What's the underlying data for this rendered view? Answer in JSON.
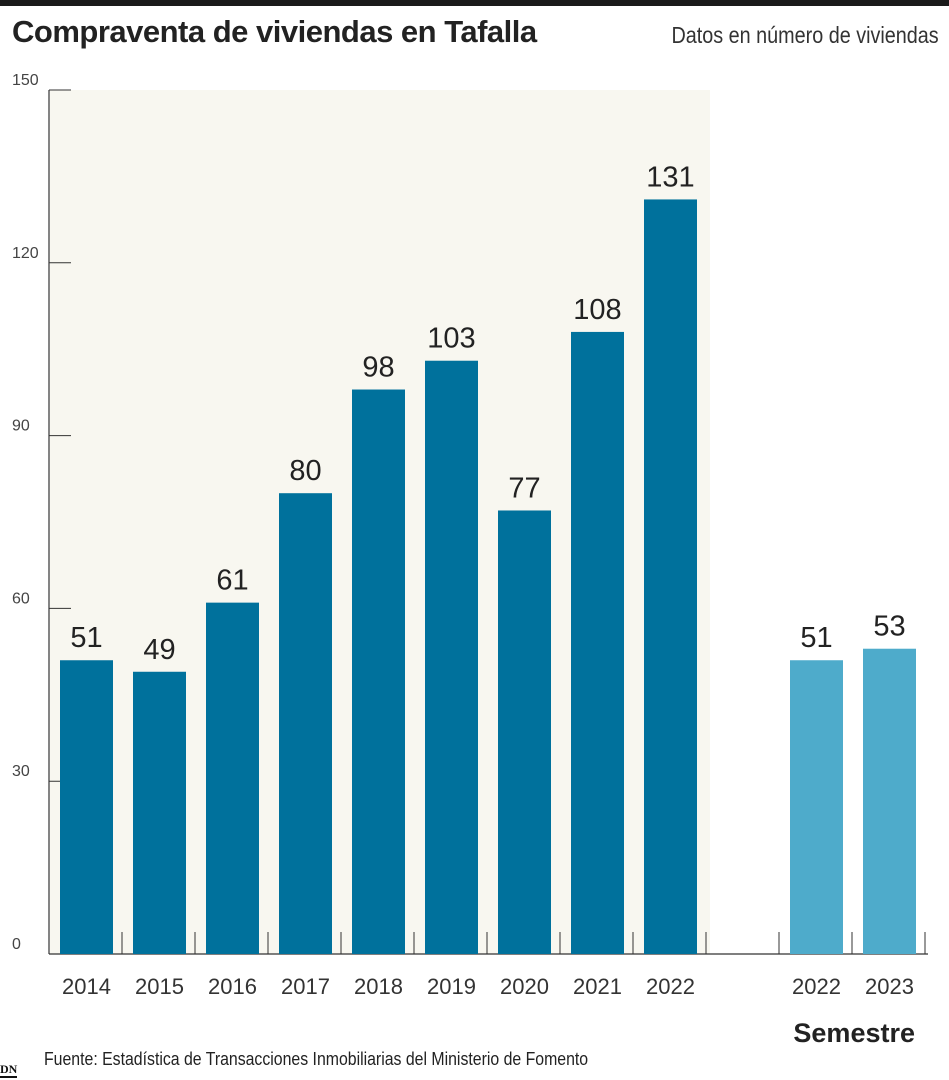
{
  "header": {
    "title": "Compraventa de viviendas en Tafalla",
    "subtitle": "Datos en número de viviendas"
  },
  "footer": {
    "source": "Fuente: Estadística de Transacciones Inmobiliarias del Ministerio de Fomento",
    "logo": "DN"
  },
  "colors": {
    "annual_bar": "#00719c",
    "semester_bar": "#4eabcb",
    "highlight_background": "#f8f7f0",
    "axis": "#333333",
    "text": "#222222"
  },
  "chart_data": {
    "type": "bar",
    "title": "Compraventa de viviendas en Tafalla",
    "subtitle": "Datos en número de viviendas",
    "ylim": [
      0,
      150
    ],
    "yticks": [
      0,
      30,
      60,
      90,
      120,
      150
    ],
    "grid": false,
    "groups": [
      {
        "label": "",
        "highlighted": true,
        "categories": [
          "2014",
          "2015",
          "2016",
          "2017",
          "2018",
          "2019",
          "2020",
          "2021",
          "2022"
        ],
        "values": [
          51,
          49,
          61,
          80,
          98,
          103,
          77,
          108,
          131
        ]
      },
      {
        "label": "Semestre",
        "highlighted": false,
        "categories": [
          "2022",
          "2023"
        ],
        "values": [
          51,
          53
        ]
      }
    ]
  }
}
